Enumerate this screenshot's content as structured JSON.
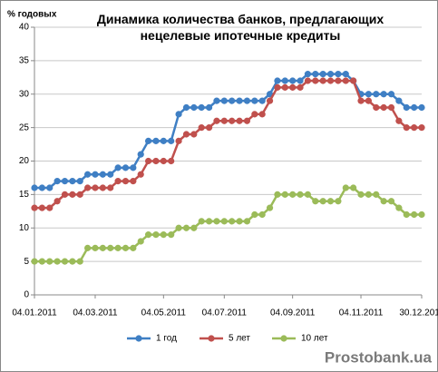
{
  "chart_data": {
    "type": "line",
    "title": "Динамика количества банков, предлагающих нецелевые ипотечные кредиты",
    "y_label": "% годовых",
    "watermark": "Prostobank.ua",
    "categories": [
      "04.01.2011",
      null,
      null,
      null,
      null,
      null,
      null,
      null,
      "04.03.2011",
      null,
      null,
      null,
      null,
      null,
      null,
      null,
      null,
      "04.05.2011",
      null,
      null,
      null,
      null,
      null,
      null,
      null,
      "04.07.2011",
      null,
      null,
      null,
      null,
      null,
      null,
      null,
      null,
      "04.09.2011",
      null,
      null,
      null,
      null,
      null,
      null,
      null,
      null,
      "04.11.2011",
      null,
      null,
      null,
      null,
      null,
      null,
      null,
      "30.12.2011"
    ],
    "series": [
      {
        "name": "1 год",
        "color": "#3f7fc4",
        "values": [
          16,
          16,
          16,
          17,
          17,
          17,
          17,
          18,
          18,
          18,
          18,
          19,
          19,
          19,
          21,
          23,
          23,
          23,
          23,
          27,
          28,
          28,
          28,
          28,
          29,
          29,
          29,
          29,
          29,
          29,
          29,
          30,
          32,
          32,
          32,
          32,
          33,
          33,
          33,
          33,
          33,
          33,
          32,
          30,
          30,
          30,
          30,
          30,
          29,
          28,
          28,
          28
        ]
      },
      {
        "name": "5 лет",
        "color": "#c0504d",
        "values": [
          13,
          13,
          13,
          14,
          15,
          15,
          15,
          16,
          16,
          16,
          16,
          17,
          17,
          17,
          18,
          20,
          20,
          20,
          20,
          23,
          24,
          24,
          25,
          25,
          26,
          26,
          26,
          26,
          26,
          27,
          27,
          29,
          31,
          31,
          31,
          31,
          32,
          32,
          32,
          32,
          32,
          32,
          32,
          29,
          29,
          28,
          28,
          28,
          26,
          25,
          25,
          25
        ]
      },
      {
        "name": "10 лет",
        "color": "#9bbb59",
        "values": [
          5,
          5,
          5,
          5,
          5,
          5,
          5,
          7,
          7,
          7,
          7,
          7,
          7,
          7,
          8,
          9,
          9,
          9,
          9,
          10,
          10,
          10,
          11,
          11,
          11,
          11,
          11,
          11,
          11,
          12,
          12,
          13,
          15,
          15,
          15,
          15,
          15,
          14,
          14,
          14,
          14,
          16,
          16,
          15,
          15,
          15,
          14,
          14,
          13,
          12,
          12,
          12
        ]
      }
    ],
    "ylim": [
      0,
      40
    ],
    "yticks": [
      0,
      5,
      10,
      15,
      20,
      25,
      30,
      35,
      40
    ],
    "grid": true
  }
}
